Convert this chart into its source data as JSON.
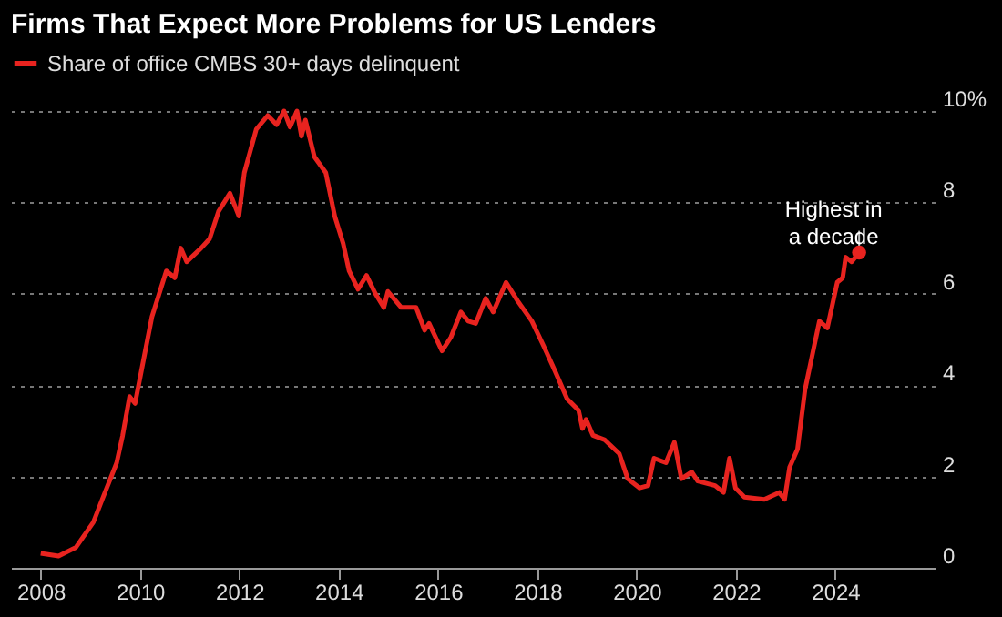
{
  "chart_data": {
    "type": "line",
    "title": "Firms That Expect More Problems for US Lenders",
    "x": [
      2008.0,
      2008.36,
      2008.71,
      2009.06,
      2009.24,
      2009.53,
      2009.65,
      2009.79,
      2009.9,
      2010.24,
      2010.53,
      2010.7,
      2010.82,
      2010.94,
      2011.23,
      2011.4,
      2011.58,
      2011.81,
      2011.99,
      2012.1,
      2012.34,
      2012.57,
      2012.75,
      2012.9,
      2013.02,
      2013.16,
      2013.25,
      2013.33,
      2013.51,
      2013.74,
      2013.92,
      2014.09,
      2014.21,
      2014.39,
      2014.56,
      2014.74,
      2014.91,
      2014.99,
      2015.26,
      2015.56,
      2015.73,
      2015.82,
      2016.08,
      2016.26,
      2016.46,
      2016.61,
      2016.76,
      2016.96,
      2017.11,
      2017.37,
      2017.6,
      2017.89,
      2018.13,
      2018.36,
      2018.6,
      2018.83,
      2018.91,
      2018.98,
      2019.12,
      2019.36,
      2019.65,
      2019.82,
      2020.06,
      2020.23,
      2020.35,
      2020.59,
      2020.76,
      2020.9,
      2021.11,
      2021.23,
      2021.58,
      2021.75,
      2021.87,
      2021.99,
      2022.17,
      2022.57,
      2022.87,
      2022.98,
      2023.08,
      2023.24,
      2023.39,
      2023.68,
      2023.84,
      2024.04,
      2024.15,
      2024.21,
      2024.33,
      2024.48
    ],
    "series": [
      {
        "name": "Share of office CMBS 30+ days delinquent",
        "color": "#e8231f",
        "values": [
          0.32,
          0.26,
          0.45,
          1.0,
          1.5,
          2.3,
          2.9,
          3.75,
          3.6,
          5.5,
          6.5,
          6.35,
          7.0,
          6.7,
          7.0,
          7.2,
          7.8,
          8.2,
          7.7,
          8.65,
          9.6,
          9.9,
          9.7,
          10.0,
          9.65,
          10.0,
          9.45,
          9.8,
          9.0,
          8.65,
          7.7,
          7.1,
          6.5,
          6.1,
          6.4,
          6.0,
          5.7,
          6.05,
          5.7,
          5.7,
          5.2,
          5.35,
          4.75,
          5.05,
          5.6,
          5.4,
          5.35,
          5.9,
          5.6,
          6.25,
          5.85,
          5.4,
          4.85,
          4.3,
          3.7,
          3.45,
          3.05,
          3.25,
          2.9,
          2.8,
          2.5,
          1.95,
          1.75,
          1.8,
          2.4,
          2.3,
          2.75,
          1.95,
          2.1,
          1.9,
          1.8,
          1.65,
          2.4,
          1.75,
          1.55,
          1.5,
          1.65,
          1.5,
          2.2,
          2.6,
          3.9,
          5.4,
          5.25,
          6.25,
          6.35,
          6.8,
          6.7,
          6.9
        ]
      }
    ],
    "xlim": [
      2007.4,
      2026
    ],
    "xticks": [
      2008,
      2010,
      2012,
      2014,
      2016,
      2018,
      2020,
      2022,
      2024
    ],
    "ylim": [
      0,
      10
    ],
    "yticks": [
      0,
      2,
      4,
      6,
      8,
      {
        "value": 10,
        "label": "10%"
      }
    ],
    "grid": "y",
    "legend": "top left",
    "annotations": [
      {
        "text": "Highest in\na decade",
        "x": 2024.48,
        "y": 6.9
      }
    ]
  }
}
